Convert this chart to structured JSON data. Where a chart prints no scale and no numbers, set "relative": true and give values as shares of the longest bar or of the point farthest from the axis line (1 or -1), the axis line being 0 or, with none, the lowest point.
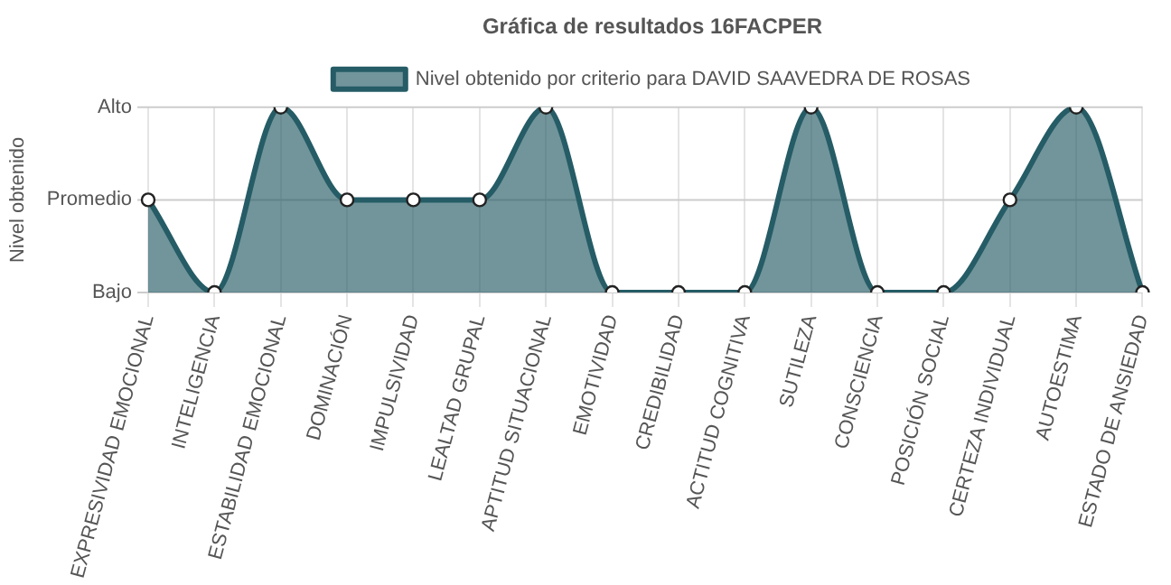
{
  "chart_data": {
    "type": "area",
    "title": "Gráfica de resultados 16FACPER",
    "ylabel": "Nivel obtenido",
    "categories": [
      "EXPRESIVIDAD EMOCIONAL",
      "INTELIGENCIA",
      "ESTABILIDAD EMOCIONAL",
      "DOMINACIÓN",
      "IMPULSIVIDAD",
      "LEALTAD GRUPAL",
      "APTITUD SITUACIONAL",
      "EMOTIVIDAD",
      "CREDIBILIDAD",
      "ACTITUD COGNITIVA",
      "SUTILEZA",
      "CONSCIENCIA",
      "POSICIÓN SOCIAL",
      "CERTEZA INDIVIDUAL",
      "AUTOESTIMA",
      "ESTADO DE ANSIEDAD"
    ],
    "series": [
      {
        "name": "Nivel obtenido por criterio para DAVID SAAVEDRA DE ROSAS",
        "color": "#255c66",
        "values": [
          0.5,
          0,
          1,
          0.5,
          0.5,
          0.5,
          1,
          0,
          0,
          0,
          1,
          0,
          0,
          0.5,
          1,
          0
        ]
      }
    ],
    "relative": true,
    "ref_lines": [
      {
        "axis": "y",
        "value": 0,
        "label": "Bajo",
        "color": "#cccccc"
      },
      {
        "axis": "y",
        "value": 0.5,
        "label": "Promedio",
        "color": "#cccccc"
      },
      {
        "axis": "y",
        "value": 1,
        "label": "Alto",
        "color": "#cccccc"
      }
    ],
    "grid": "x",
    "legend": "top",
    "marker": "circle"
  }
}
